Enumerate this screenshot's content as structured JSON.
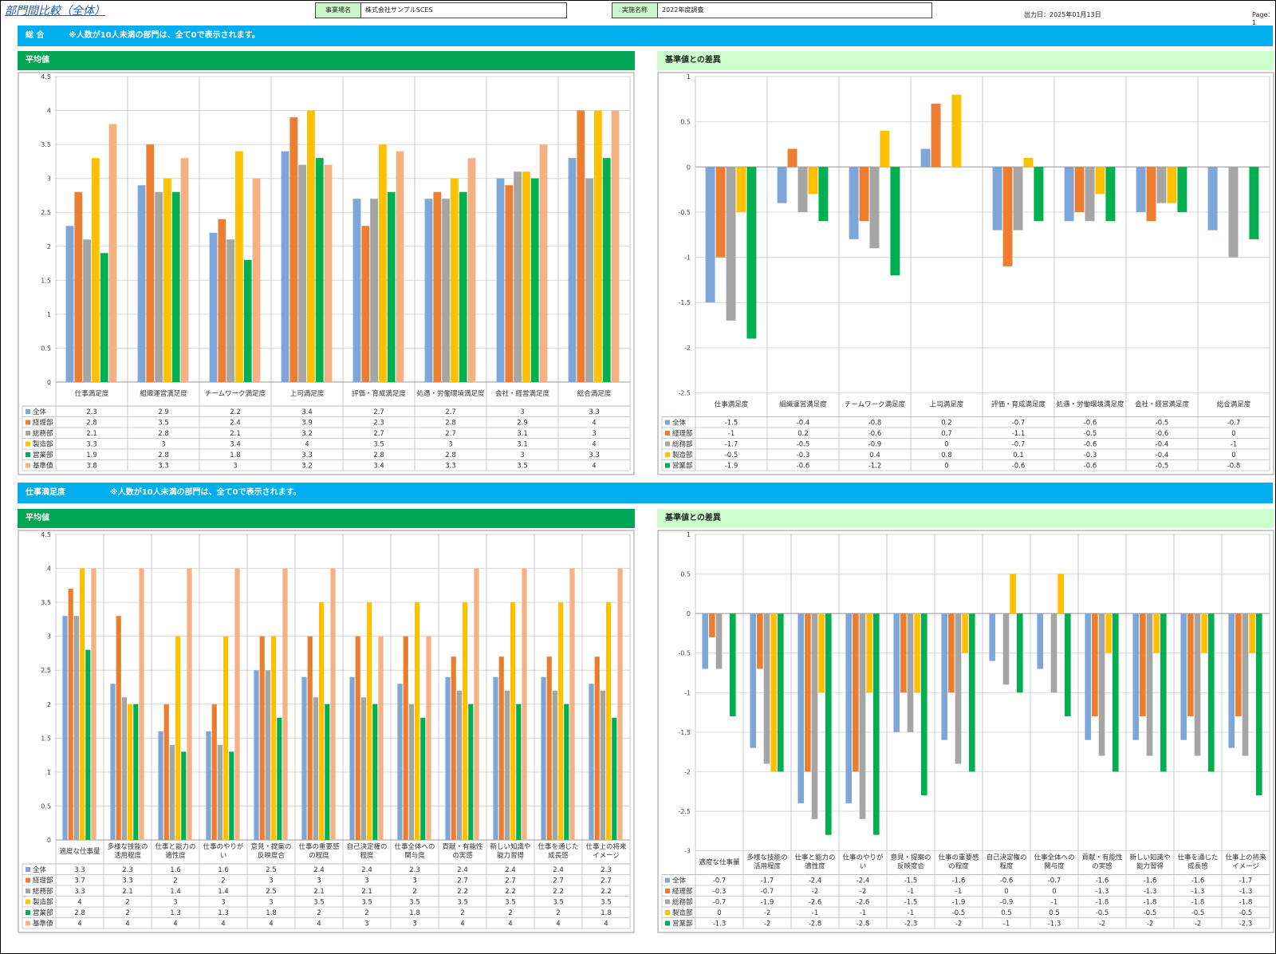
{
  "header": {
    "title": "部門間比較（全体）",
    "company_label": "事業場名",
    "company_value": "株式会社サンプルSCES",
    "survey_label": "実施名称",
    "survey_value": "2022年度調査",
    "output_date": "出力日：2025年01月13日",
    "page": "Page：1"
  },
  "sections": [
    {
      "name": "総 合",
      "note": "※人数が10人未満の部門は、全て0で表示されます。",
      "avg_title": "平均値",
      "diff_title": "基準値との差異"
    },
    {
      "name": "仕事満足度",
      "note": "※人数が10人未満の部門は、全て0で表示されます。",
      "avg_title": "平均値",
      "diff_title": "基準値との差異"
    }
  ],
  "colors": {
    "全体": "#7ea6d8",
    "経理部": "#ed7d31",
    "総務部": "#a5a5a5",
    "製造部": "#ffc000",
    "営業部": "#00b050",
    "基準値": "#f4b183"
  },
  "chart_data": [
    {
      "type": "bar",
      "ylim": [
        0,
        4.5
      ],
      "yticks": [
        0,
        0.5,
        1,
        1.5,
        2,
        2.5,
        3,
        3.5,
        4,
        4.5
      ],
      "categories": [
        "仕事満足度",
        "組織運営満足度",
        "チームワーク満足度",
        "上司満足度",
        "評価・育成満足度",
        "処遇・労働環境満足度",
        "会社・経営満足度",
        "総合満足度"
      ],
      "series": [
        {
          "name": "全体",
          "values": [
            2.3,
            2.9,
            2.2,
            3.4,
            2.7,
            2.7,
            3,
            3.3
          ]
        },
        {
          "name": "経理部",
          "values": [
            2.8,
            3.5,
            2.4,
            3.9,
            2.3,
            2.8,
            2.9,
            4
          ]
        },
        {
          "name": "総務部",
          "values": [
            2.1,
            2.8,
            2.1,
            3.2,
            2.7,
            2.7,
            3.1,
            3
          ]
        },
        {
          "name": "製造部",
          "values": [
            3.3,
            3,
            3.4,
            4,
            3.5,
            3,
            3.1,
            4
          ]
        },
        {
          "name": "営業部",
          "values": [
            1.9,
            2.8,
            1.8,
            3.3,
            2.8,
            2.8,
            3,
            3.3
          ]
        },
        {
          "name": "基準値",
          "values": [
            3.8,
            3.3,
            3,
            3.2,
            3.4,
            3.3,
            3.5,
            4
          ]
        }
      ]
    },
    {
      "type": "bar",
      "ylim": [
        -2.5,
        1
      ],
      "yticks": [
        -2.5,
        -2,
        -1.5,
        -1,
        -0.5,
        0,
        0.5,
        1
      ],
      "categories": [
        "仕事満足度",
        "組織運営満足度",
        "チームワーク満足度",
        "上司満足度",
        "評価・育成満足度",
        "処遇・労働環境満足度",
        "会社・経営満足度",
        "総合満足度"
      ],
      "series": [
        {
          "name": "全体",
          "values": [
            -1.5,
            -0.4,
            -0.8,
            0.2,
            -0.7,
            -0.6,
            -0.5,
            -0.7
          ]
        },
        {
          "name": "経理部",
          "values": [
            -1,
            0.2,
            -0.6,
            0.7,
            -1.1,
            -0.5,
            -0.6,
            0
          ]
        },
        {
          "name": "総務部",
          "values": [
            -1.7,
            -0.5,
            -0.9,
            0,
            -0.7,
            -0.6,
            -0.4,
            -1
          ]
        },
        {
          "name": "製造部",
          "values": [
            -0.5,
            -0.3,
            0.4,
            0.8,
            0.1,
            -0.3,
            -0.4,
            0
          ]
        },
        {
          "name": "営業部",
          "values": [
            -1.9,
            -0.6,
            -1.2,
            0,
            -0.6,
            -0.6,
            -0.5,
            -0.8
          ]
        }
      ]
    },
    {
      "type": "bar",
      "ylim": [
        0,
        4.5
      ],
      "yticks": [
        0,
        0.5,
        1,
        1.5,
        2,
        2.5,
        3,
        3.5,
        4,
        4.5
      ],
      "categories": [
        "適度な仕事量",
        "多様な技能の活用程度",
        "仕事と能力の適性度",
        "仕事のやりがい",
        "意見・提案の反映度合",
        "仕事の重要感の程度",
        "自己決定権の程度",
        "仕事全体への関与度",
        "貢献・有能性の実感",
        "新しい知識や能力習得",
        "仕事を通じた成長感",
        "仕事上の将来イメージ"
      ],
      "series": [
        {
          "name": "全体",
          "values": [
            3.3,
            2.3,
            1.6,
            1.6,
            2.5,
            2.4,
            2.4,
            2.3,
            2.4,
            2.4,
            2.4,
            2.3
          ]
        },
        {
          "name": "経理部",
          "values": [
            3.7,
            3.3,
            2,
            2,
            3,
            3,
            3,
            3,
            2.7,
            2.7,
            2.7,
            2.7
          ]
        },
        {
          "name": "総務部",
          "values": [
            3.3,
            2.1,
            1.4,
            1.4,
            2.5,
            2.1,
            2.1,
            2,
            2.2,
            2.2,
            2.2,
            2.2
          ]
        },
        {
          "name": "製造部",
          "values": [
            4,
            2,
            3,
            3,
            3,
            3.5,
            3.5,
            3.5,
            3.5,
            3.5,
            3.5,
            3.5
          ]
        },
        {
          "name": "営業部",
          "values": [
            2.8,
            2,
            1.3,
            1.3,
            1.8,
            2,
            2,
            1.8,
            2,
            2,
            2,
            1.8
          ]
        },
        {
          "name": "基準値",
          "values": [
            4,
            4,
            4,
            4,
            4,
            4,
            3,
            3,
            4,
            4,
            4,
            4
          ]
        }
      ]
    },
    {
      "type": "bar",
      "ylim": [
        -3,
        1
      ],
      "yticks": [
        -3,
        -2.5,
        -2,
        -1.5,
        -1,
        -0.5,
        0,
        0.5,
        1
      ],
      "categories": [
        "適度な仕事量",
        "多様な技能の活用程度",
        "仕事と能力の適性度",
        "仕事のやりがい",
        "意見・提案の反映度合",
        "仕事の重要感の程度",
        "自己決定権の程度",
        "仕事全体への関与度",
        "貢献・有能性の実感",
        "新しい知識や能力習得",
        "仕事を通じた成長感",
        "仕事上の将来イメージ"
      ],
      "series": [
        {
          "name": "全体",
          "values": [
            -0.7,
            -1.7,
            -2.4,
            -2.4,
            -1.5,
            -1.6,
            -0.6,
            -0.7,
            -1.6,
            -1.6,
            -1.6,
            -1.7
          ]
        },
        {
          "name": "経理部",
          "values": [
            -0.3,
            -0.7,
            -2,
            -2,
            -1,
            -1,
            0,
            0,
            -1.3,
            -1.3,
            -1.3,
            -1.3
          ]
        },
        {
          "name": "総務部",
          "values": [
            -0.7,
            -1.9,
            -2.6,
            -2.6,
            -1.5,
            -1.9,
            -0.9,
            -1,
            -1.8,
            -1.8,
            -1.8,
            -1.8
          ]
        },
        {
          "name": "製造部",
          "values": [
            0,
            -2,
            -1,
            -1,
            -1,
            -0.5,
            0.5,
            0.5,
            -0.5,
            -0.5,
            -0.5,
            -0.5
          ]
        },
        {
          "name": "営業部",
          "values": [
            -1.3,
            -2,
            -2.8,
            -2.8,
            -2.3,
            -2,
            -1,
            -1.3,
            -2,
            -2,
            -2,
            -2.3
          ]
        }
      ]
    }
  ]
}
